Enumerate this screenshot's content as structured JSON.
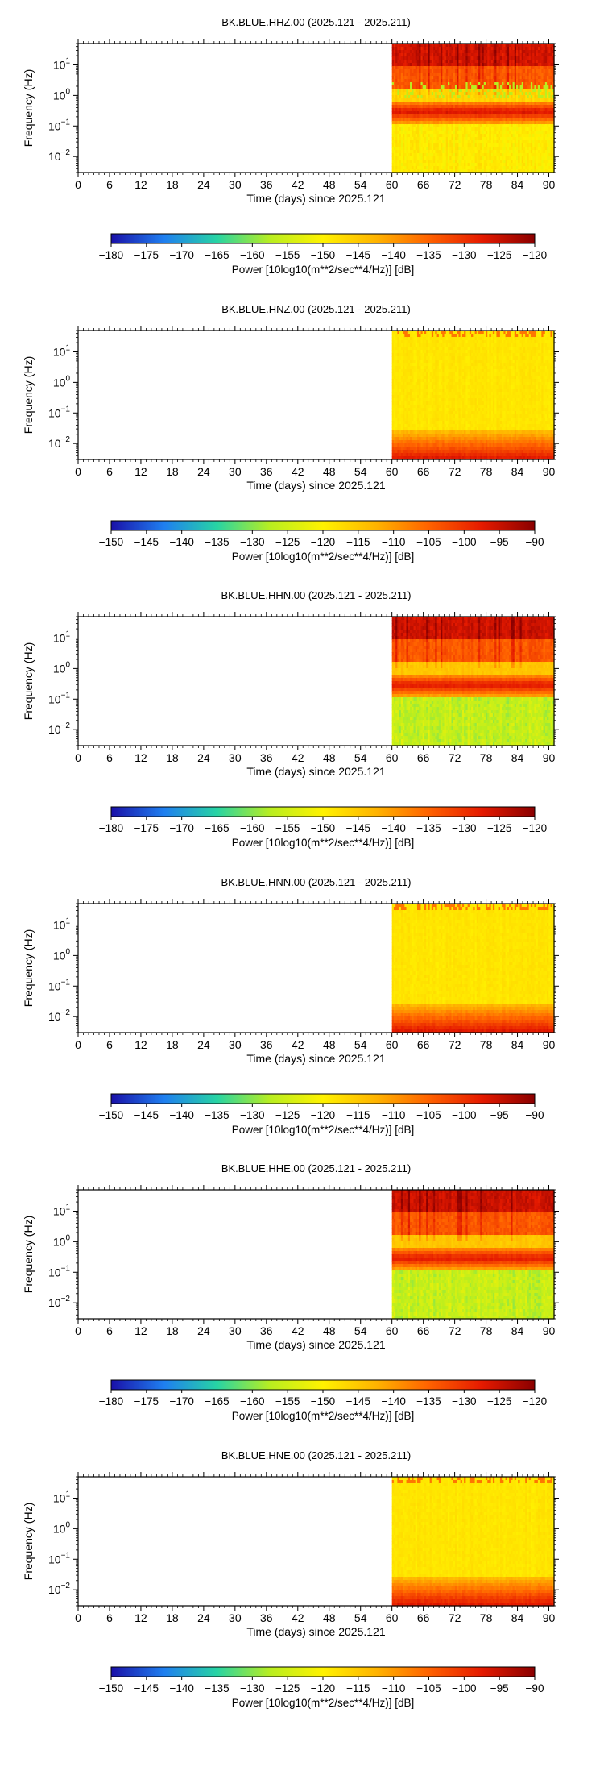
{
  "chart_data": [
    {
      "type": "heatmap",
      "title": "BK.BLUE.HHZ.00 (2025.121 - 2025.211)",
      "xlabel": "Time (days) since 2025.121",
      "ylabel": "Frequency (Hz)",
      "xlim": [
        0,
        91
      ],
      "ylim": [
        0.003,
        50
      ],
      "y_scale": "log",
      "x_ticks": [
        "0",
        "6",
        "12",
        "18",
        "24",
        "30",
        "36",
        "42",
        "48",
        "54",
        "60",
        "66",
        "72",
        "78",
        "84",
        "90"
      ],
      "y_ticks": [
        {
          "value": 10,
          "mant": "10",
          "exp": "1"
        },
        {
          "value": 1,
          "mant": "10",
          "exp": "0"
        },
        {
          "value": 0.1,
          "mant": "10",
          "exp": "−1"
        },
        {
          "value": 0.01,
          "mant": "10",
          "exp": "−2"
        }
      ],
      "data_start_day": 60,
      "pattern": "hh",
      "colorbar": {
        "min": -180,
        "max": -120,
        "ticks": [
          "−180",
          "−175",
          "−170",
          "−165",
          "−160",
          "−155",
          "−150",
          "−145",
          "−140",
          "−135",
          "−130",
          "−125",
          "−120"
        ],
        "label": "Power [10log10(m**2/sec**4/Hz)] [dB]"
      }
    },
    {
      "type": "heatmap",
      "title": "BK.BLUE.HNZ.00 (2025.121 - 2025.211)",
      "xlabel": "Time (days) since 2025.121",
      "ylabel": "Frequency (Hz)",
      "xlim": [
        0,
        91
      ],
      "ylim": [
        0.003,
        50
      ],
      "y_scale": "log",
      "x_ticks": [
        "0",
        "6",
        "12",
        "18",
        "24",
        "30",
        "36",
        "42",
        "48",
        "54",
        "60",
        "66",
        "72",
        "78",
        "84",
        "90"
      ],
      "y_ticks": [
        {
          "value": 10,
          "mant": "10",
          "exp": "1"
        },
        {
          "value": 1,
          "mant": "10",
          "exp": "0"
        },
        {
          "value": 0.1,
          "mant": "10",
          "exp": "−1"
        },
        {
          "value": 0.01,
          "mant": "10",
          "exp": "−2"
        }
      ],
      "data_start_day": 60,
      "pattern": "hn",
      "colorbar": {
        "min": -150,
        "max": -90,
        "ticks": [
          "−150",
          "−145",
          "−140",
          "−135",
          "−130",
          "−125",
          "−120",
          "−115",
          "−110",
          "−105",
          "−100",
          "−95",
          "−90"
        ],
        "label": "Power [10log10(m**2/sec**4/Hz)] [dB]"
      }
    },
    {
      "type": "heatmap",
      "title": "BK.BLUE.HHN.00 (2025.121 - 2025.211)",
      "xlabel": "Time (days) since 2025.121",
      "ylabel": "Frequency (Hz)",
      "xlim": [
        0,
        91
      ],
      "ylim": [
        0.003,
        50
      ],
      "y_scale": "log",
      "x_ticks": [
        "0",
        "6",
        "12",
        "18",
        "24",
        "30",
        "36",
        "42",
        "48",
        "54",
        "60",
        "66",
        "72",
        "78",
        "84",
        "90"
      ],
      "y_ticks": [
        {
          "value": 10,
          "mant": "10",
          "exp": "1"
        },
        {
          "value": 1,
          "mant": "10",
          "exp": "0"
        },
        {
          "value": 0.1,
          "mant": "10",
          "exp": "−1"
        },
        {
          "value": 0.01,
          "mant": "10",
          "exp": "−2"
        }
      ],
      "data_start_day": 60,
      "pattern": "hh",
      "colorbar": {
        "min": -180,
        "max": -120,
        "ticks": [
          "−180",
          "−175",
          "−170",
          "−165",
          "−160",
          "−155",
          "−150",
          "−145",
          "−140",
          "−135",
          "−130",
          "−125",
          "−120"
        ],
        "label": "Power [10log10(m**2/sec**4/Hz)] [dB]"
      }
    },
    {
      "type": "heatmap",
      "title": "BK.BLUE.HNN.00 (2025.121 - 2025.211)",
      "xlabel": "Time (days) since 2025.121",
      "ylabel": "Frequency (Hz)",
      "xlim": [
        0,
        91
      ],
      "ylim": [
        0.003,
        50
      ],
      "y_scale": "log",
      "x_ticks": [
        "0",
        "6",
        "12",
        "18",
        "24",
        "30",
        "36",
        "42",
        "48",
        "54",
        "60",
        "66",
        "72",
        "78",
        "84",
        "90"
      ],
      "y_ticks": [
        {
          "value": 10,
          "mant": "10",
          "exp": "1"
        },
        {
          "value": 1,
          "mant": "10",
          "exp": "0"
        },
        {
          "value": 0.1,
          "mant": "10",
          "exp": "−1"
        },
        {
          "value": 0.01,
          "mant": "10",
          "exp": "−2"
        }
      ],
      "data_start_day": 60,
      "pattern": "hn",
      "colorbar": {
        "min": -150,
        "max": -90,
        "ticks": [
          "−150",
          "−145",
          "−140",
          "−135",
          "−130",
          "−125",
          "−120",
          "−115",
          "−110",
          "−105",
          "−100",
          "−95",
          "−90"
        ],
        "label": "Power [10log10(m**2/sec**4/Hz)] [dB]"
      }
    },
    {
      "type": "heatmap",
      "title": "BK.BLUE.HHE.00 (2025.121 - 2025.211)",
      "xlabel": "Time (days) since 2025.121",
      "ylabel": "Frequency (Hz)",
      "xlim": [
        0,
        91
      ],
      "ylim": [
        0.003,
        50
      ],
      "y_scale": "log",
      "x_ticks": [
        "0",
        "6",
        "12",
        "18",
        "24",
        "30",
        "36",
        "42",
        "48",
        "54",
        "60",
        "66",
        "72",
        "78",
        "84",
        "90"
      ],
      "y_ticks": [
        {
          "value": 10,
          "mant": "10",
          "exp": "1"
        },
        {
          "value": 1,
          "mant": "10",
          "exp": "0"
        },
        {
          "value": 0.1,
          "mant": "10",
          "exp": "−1"
        },
        {
          "value": 0.01,
          "mant": "10",
          "exp": "−2"
        }
      ],
      "data_start_day": 60,
      "pattern": "hh",
      "colorbar": {
        "min": -180,
        "max": -120,
        "ticks": [
          "−180",
          "−175",
          "−170",
          "−165",
          "−160",
          "−155",
          "−150",
          "−145",
          "−140",
          "−135",
          "−130",
          "−125",
          "−120"
        ],
        "label": "Power [10log10(m**2/sec**4/Hz)] [dB]"
      }
    },
    {
      "type": "heatmap",
      "title": "BK.BLUE.HNE.00 (2025.121 - 2025.211)",
      "xlabel": "Time (days) since 2025.121",
      "ylabel": "Frequency (Hz)",
      "xlim": [
        0,
        91
      ],
      "ylim": [
        0.003,
        50
      ],
      "y_scale": "log",
      "x_ticks": [
        "0",
        "6",
        "12",
        "18",
        "24",
        "30",
        "36",
        "42",
        "48",
        "54",
        "60",
        "66",
        "72",
        "78",
        "84",
        "90"
      ],
      "y_ticks": [
        {
          "value": 10,
          "mant": "10",
          "exp": "1"
        },
        {
          "value": 1,
          "mant": "10",
          "exp": "0"
        },
        {
          "value": 0.1,
          "mant": "10",
          "exp": "−1"
        },
        {
          "value": 0.01,
          "mant": "10",
          "exp": "−2"
        }
      ],
      "data_start_day": 60,
      "pattern": "hn",
      "colorbar": {
        "min": -150,
        "max": -90,
        "ticks": [
          "−150",
          "−145",
          "−140",
          "−135",
          "−130",
          "−125",
          "−120",
          "−115",
          "−110",
          "−105",
          "−100",
          "−95",
          "−90"
        ],
        "label": "Power [10log10(m**2/sec**4/Hz)] [dB]"
      }
    }
  ],
  "colormap": [
    "#1a10a8",
    "#1f7ff0",
    "#27d4a4",
    "#b8ee20",
    "#fff200",
    "#ffb400",
    "#ff6200",
    "#e51a00",
    "#8a0000"
  ]
}
